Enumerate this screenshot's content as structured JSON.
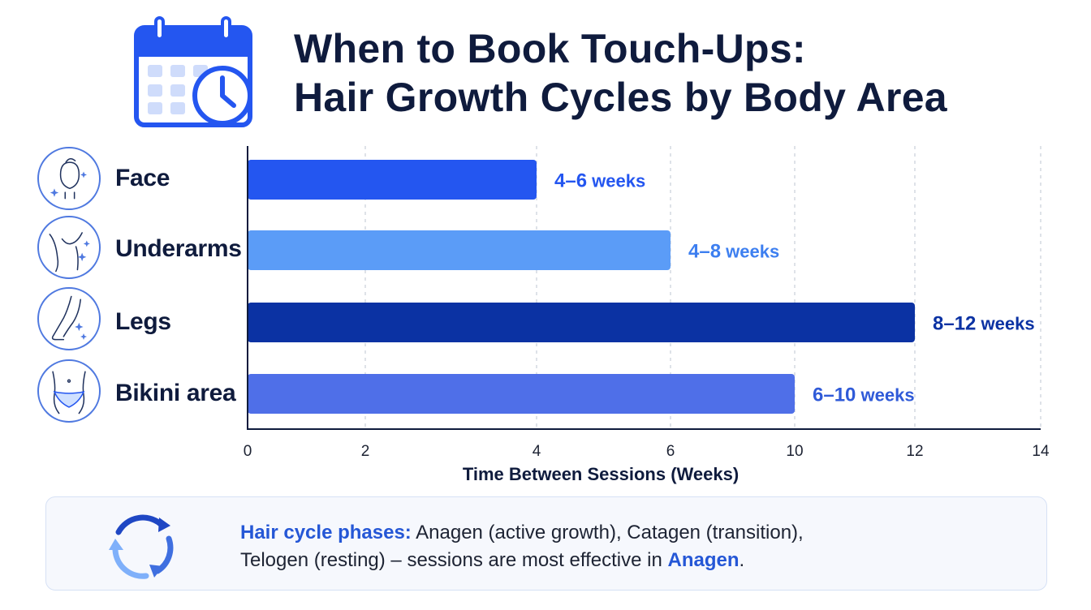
{
  "title": {
    "line1": "When to Book Touch-Ups:",
    "line2": "Hair Growth Cycles by Body Area"
  },
  "icons": {
    "header": "calendar-clock-icon",
    "rows": [
      "face-icon",
      "underarm-icon",
      "leg-icon",
      "bikini-icon"
    ],
    "footer": "cycle-arrows-icon"
  },
  "colors": {
    "face": "#2456f0",
    "underarms": "#5b9cf7",
    "legs": "#0b32a3",
    "bikini": "#4f6fe8",
    "title": "#0f1b3d",
    "accent": "#2557d6"
  },
  "chart_data": {
    "type": "bar",
    "orientation": "horizontal",
    "categories": [
      "Face",
      "Underarms",
      "Legs",
      "Bikini area"
    ],
    "values": [
      4,
      6,
      12,
      10
    ],
    "value_labels": [
      {
        "range": "4–6",
        "unit": "weeks"
      },
      {
        "range": "4–8",
        "unit": "weeks"
      },
      {
        "range": "8–12",
        "unit": "weeks"
      },
      {
        "range": "6–10",
        "unit": "weeks"
      }
    ],
    "xlabel": "Time Between Sessions (Weeks)",
    "xticks": [
      0,
      2,
      4,
      6,
      10,
      12,
      14
    ],
    "grid": true,
    "gridline_style": "dashed"
  },
  "footer": {
    "lead": "Hair cycle phases:",
    "text1": " Anagen (active growth), Catagen (transition),",
    "text2": "Telogen (resting) – sessions are most effective in ",
    "highlight": "Anagen",
    "end": "."
  }
}
